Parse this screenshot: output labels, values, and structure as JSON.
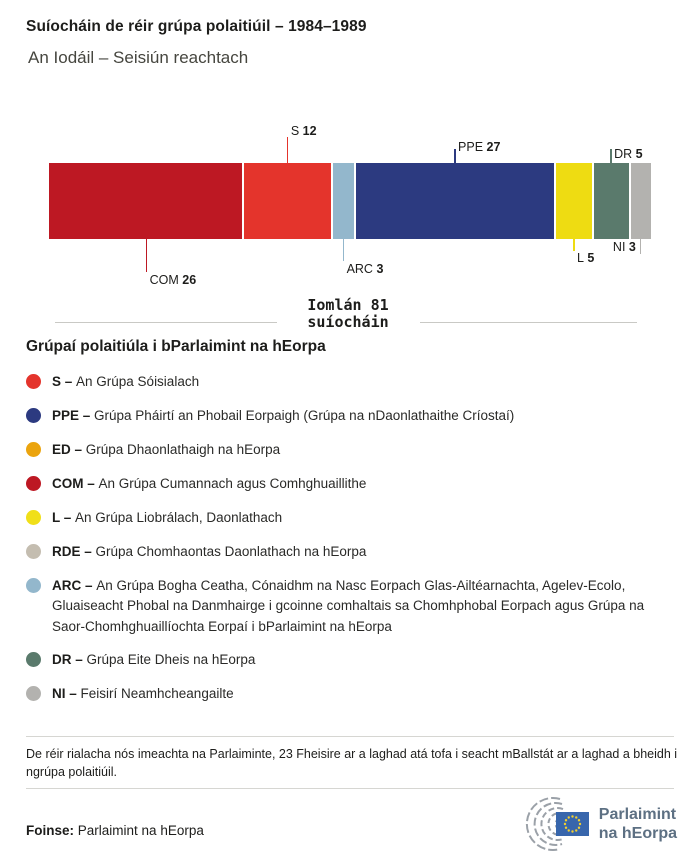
{
  "header": {
    "title": "Suíocháin de réir grúpa polaitiúil – 1984–1989",
    "subtitle": "An Iodáil – Seisiún reachtach"
  },
  "chart_data": {
    "type": "bar",
    "stacked": true,
    "total": 81,
    "total_label": {
      "line1": "Iomlán 81",
      "line2": "suíocháin"
    },
    "segments": [
      {
        "code": "COM",
        "value": 26,
        "color": "#bd1823",
        "label_pos": "below",
        "line_len": 33,
        "text_y": 155
      },
      {
        "code": "S",
        "value": 12,
        "color": "#e4342c",
        "label_pos": "above",
        "line_len": 26,
        "text_y": 20
      },
      {
        "code": "ARC",
        "value": 3,
        "color": "#93b7cc",
        "label_pos": "below",
        "line_len": 22,
        "text_y": 144
      },
      {
        "code": "PPE",
        "value": 27,
        "color": "#2c3a80",
        "label_pos": "above",
        "line_len": 14,
        "text_y": 36
      },
      {
        "code": "L",
        "value": 5,
        "color": "#eedc12",
        "label_pos": "below",
        "line_len": 12,
        "text_y": 133
      },
      {
        "code": "DR",
        "value": 5,
        "color": "#5a7a6c",
        "label_pos": "above",
        "line_len": 14,
        "text_y": 43
      },
      {
        "code": "NI",
        "value": 3,
        "color": "#b3b2af",
        "label_pos": "below",
        "line_len": 15,
        "text_y": 122,
        "text_side": "left"
      }
    ]
  },
  "legend": {
    "heading": "Grúpaí polaitiúla i bParlaimint na hEorpa",
    "items": [
      {
        "code": "S",
        "color": "#e4342c",
        "text": "An Grúpa Sóisialach"
      },
      {
        "code": "PPE",
        "color": "#2c3a80",
        "text": "Grúpa Pháirtí an Phobail Eorpaigh (Grúpa na nDaonlathaithe Críostaí)"
      },
      {
        "code": "ED",
        "color": "#eba40e",
        "text": "Grúpa Dhaonlathaigh na hEorpa"
      },
      {
        "code": "COM",
        "color": "#bd1823",
        "text": "An Grúpa Cumannach agus Comhghuaillithe"
      },
      {
        "code": "L",
        "color": "#f0df19",
        "text": "An Grúpa Liobrálach, Daonlathach"
      },
      {
        "code": "RDE",
        "color": "#c4bdb0",
        "text": "Grúpa Chomhaontas Daonlathach na hEorpa"
      },
      {
        "code": "ARC",
        "color": "#93b7cc",
        "text": "An Grúpa Bogha Ceatha, Cónaidhm na Nasc Eorpach Glas-Ailtéarnachta, Agelev-Ecolo, Gluaiseacht Phobal na Danmhairge i gcoinne comhaltais sa Chomhphobal Eorpach agus Grúpa na Saor-Chomhghuaillíochta Eorpaí i bParlaimint na hEorpa"
      },
      {
        "code": "DR",
        "color": "#5a7a6c",
        "text": "Grúpa Eite Dheis na hEorpa"
      },
      {
        "code": "NI",
        "color": "#b3b2af",
        "text": "Feisirí Neamhcheangailte"
      }
    ],
    "separator": "–"
  },
  "footnote": "De réir rialacha nós imeachta na Parlaiminte, 23 Fheisire ar a laghad atá tofa i seacht mBallstát ar a laghad a bheidh i ngrúpa polaitiúil.",
  "source": {
    "label": "Foinse:",
    "text": "Parlaimint na hEorpa"
  },
  "logo": {
    "line1": "Parlaimint",
    "line2": "na hEorpa",
    "flag_color": "#3866ac",
    "star_color": "#f3d02f",
    "arc_color": "#9ba1a8"
  }
}
